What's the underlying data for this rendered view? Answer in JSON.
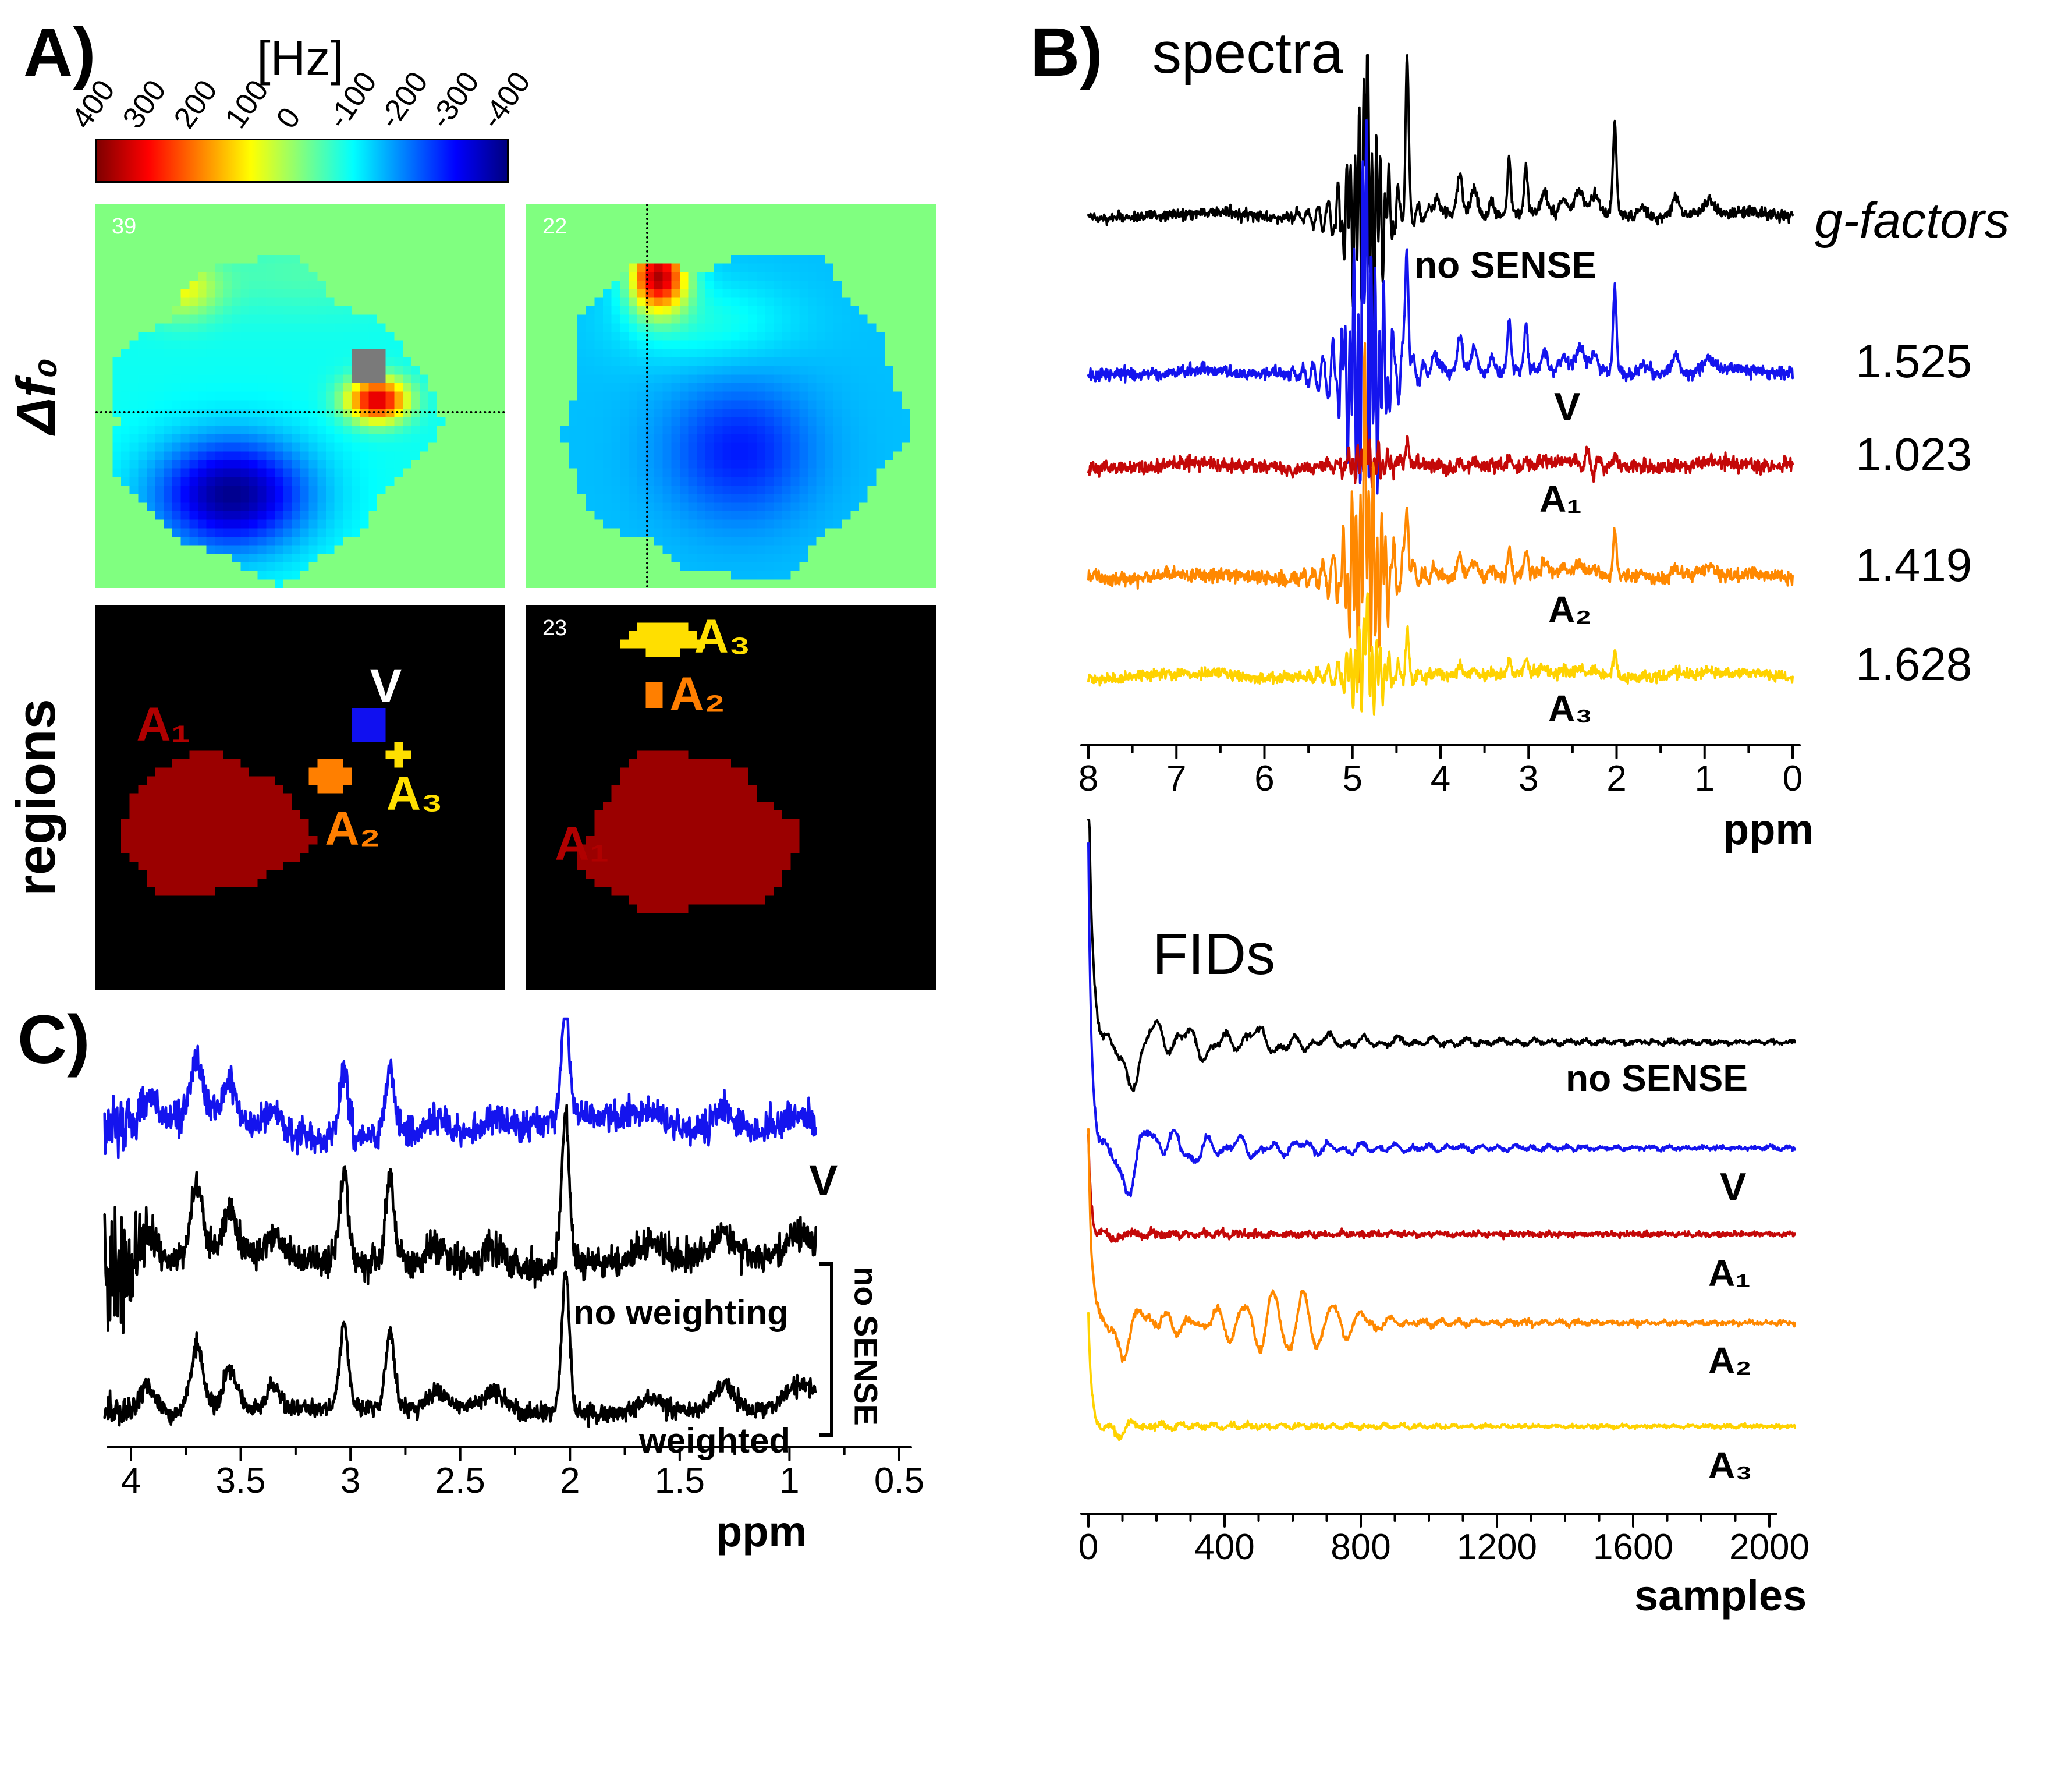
{
  "panelA": {
    "label": "A)",
    "colorbar": {
      "title": "[Hz]",
      "ticks": [
        "400",
        "300",
        "200",
        "100",
        "0",
        "-100",
        "-200",
        "-300",
        "-400"
      ]
    },
    "row1_label": "Δf₀",
    "row2_label": "regions",
    "field_map1": {
      "corner_num": "39"
    },
    "field_map2": {
      "corner_num": "22"
    },
    "region_maps": {
      "map3": {
        "labels": [
          {
            "text": "A₁",
            "color": "#b00000"
          },
          {
            "text": "A₂",
            "color": "#ff7f00"
          },
          {
            "text": "V",
            "color": "#ffffff"
          },
          {
            "text": "A₃",
            "color": "#ffdf00"
          }
        ]
      },
      "map4": {
        "corner_num": "23",
        "labels": [
          {
            "text": "A₃",
            "color": "#ffdf00"
          },
          {
            "text": "A₂",
            "color": "#ff7f00"
          },
          {
            "text": "A₁",
            "color": "#b00000"
          }
        ]
      }
    },
    "region_colors": {
      "A1": "#9b0000",
      "A2": "#ff7f00",
      "A3": "#ffdf00",
      "V": "#1010f0"
    }
  },
  "panelB": {
    "label": "B)",
    "gfactors_header": "g-factors"
  },
  "panelC": {
    "label": "C)",
    "bracket_label": "no SENSE"
  },
  "chart_data": [
    {
      "id": "spectra_b",
      "type": "line",
      "title": "spectra",
      "xlabel": "ppm",
      "x_range": [
        8,
        0
      ],
      "x_ticks": [
        "8",
        "7",
        "6",
        "5",
        "4",
        "3",
        "2",
        "1",
        "0"
      ],
      "water_ppm": 4.85,
      "peaks": [
        [
          4.38,
          1.0,
          0.018
        ],
        [
          4.05,
          0.1,
          0.05
        ],
        [
          3.78,
          0.28,
          0.03
        ],
        [
          3.62,
          0.2,
          0.04
        ],
        [
          3.42,
          0.12,
          0.03
        ],
        [
          3.22,
          0.38,
          0.02
        ],
        [
          3.03,
          0.33,
          0.02
        ],
        [
          2.82,
          0.14,
          0.035
        ],
        [
          2.6,
          0.1,
          0.04
        ],
        [
          2.42,
          0.16,
          0.05
        ],
        [
          2.25,
          0.12,
          0.04
        ],
        [
          2.02,
          0.62,
          0.02
        ],
        [
          1.7,
          0.07,
          0.05
        ],
        [
          1.33,
          0.13,
          0.04
        ],
        [
          0.95,
          0.1,
          0.06
        ]
      ],
      "series": [
        {
          "name": "no SENSE",
          "color": "#000000",
          "g_factor": "",
          "scale": 1.0,
          "noise": 0.018,
          "water": 0.8,
          "seed": 11
        },
        {
          "name": "V",
          "color": "#1414ee",
          "g_factor": "1.525",
          "scale": 0.92,
          "noise": 0.02,
          "water": 1.05,
          "seed": 22
        },
        {
          "name": "A₁",
          "color": "#c40808",
          "g_factor": "1.023",
          "scale": 0.16,
          "noise": 0.022,
          "water": 0.16,
          "seed": 33,
          "wiggle": [
            2.3,
            0.1
          ]
        },
        {
          "name": "A₂",
          "color": "#ff8800",
          "g_factor": "1.419",
          "scale": 0.5,
          "noise": 0.022,
          "water": 0.8,
          "seed": 44
        },
        {
          "name": "A₃",
          "color": "#ffd200",
          "g_factor": "1.628",
          "scale": 0.27,
          "noise": 0.018,
          "water": 0.34,
          "seed": 55
        }
      ]
    },
    {
      "id": "fids",
      "type": "line",
      "title": "FIDs",
      "xlabel": "samples",
      "x_range": [
        0,
        2075
      ],
      "x_ticks": [
        "0",
        "400",
        "800",
        "1200",
        "1600",
        "2000"
      ],
      "series": [
        {
          "name": "no SENSE",
          "color": "#000000",
          "spike": 2.55,
          "amp": 0.55,
          "tau": 0.1,
          "f1": 55,
          "beat": 0.6,
          "f2": 23,
          "noise": 0.022,
          "seed": 7
        },
        {
          "name": "V",
          "color": "#1414ee",
          "spike": 2.55,
          "amp": 0.5,
          "tau": 0.09,
          "f1": 62,
          "beat": 0.5,
          "f2": 19,
          "noise": 0.022,
          "seed": 8
        },
        {
          "name": "A₁",
          "color": "#c40808",
          "spike": 0.85,
          "amp": 0.18,
          "tau": 0.025,
          "f1": 85,
          "beat": 0.3,
          "f2": 40,
          "noise": 0.028,
          "seed": 9
        },
        {
          "name": "A₂",
          "color": "#ff8800",
          "spike": 1.5,
          "amp": 0.45,
          "tau": 0.06,
          "f1": 70,
          "beat": 0.5,
          "f2": 25,
          "noise": 0.026,
          "rev": 0.32,
          "rev_c": 0.28,
          "rev_w": 0.1,
          "rev_f": 150,
          "seed": 10
        },
        {
          "name": "A₃",
          "color": "#ffd200",
          "spike": 0.95,
          "amp": 0.22,
          "tau": 0.03,
          "f1": 78,
          "beat": 0.4,
          "f2": 30,
          "noise": 0.02,
          "seed": 12
        }
      ]
    },
    {
      "id": "spectra_c",
      "type": "line",
      "xlabel": "ppm",
      "x_range": [
        4.12,
        0.88
      ],
      "x_ticks": [
        "4",
        "3.5",
        "3",
        "2.5",
        "2",
        "1.5",
        "1",
        "0.5"
      ],
      "annotation": "no SENSE",
      "peaks": [
        [
          3.92,
          0.22,
          0.04
        ],
        [
          3.7,
          0.5,
          0.03
        ],
        [
          3.55,
          0.3,
          0.035
        ],
        [
          3.35,
          0.17,
          0.035
        ],
        [
          3.03,
          0.62,
          0.02
        ],
        [
          2.82,
          0.58,
          0.02
        ],
        [
          2.6,
          0.12,
          0.04
        ],
        [
          2.35,
          0.14,
          0.05
        ],
        [
          2.02,
          1.05,
          0.018
        ],
        [
          1.62,
          0.1,
          0.06
        ],
        [
          1.3,
          0.2,
          0.05
        ],
        [
          0.95,
          0.18,
          0.07
        ],
        [
          0.65,
          0.12,
          0.06
        ]
      ],
      "series": [
        {
          "name": "V",
          "color": "#1414ee",
          "scale": 0.75,
          "noise": 0.05,
          "edge": 0.5,
          "wander": 0.06,
          "seed": 101
        },
        {
          "name": "no weighting",
          "color": "#000000",
          "scale": 0.95,
          "noise": 0.05,
          "edge": 1.3,
          "wander": 0.03,
          "seed": 102
        },
        {
          "name": "weighted",
          "color": "#000000",
          "scale": 0.9,
          "noise": 0.03,
          "edge": 0.4,
          "wander": 0.02,
          "seed": 103
        }
      ]
    }
  ]
}
